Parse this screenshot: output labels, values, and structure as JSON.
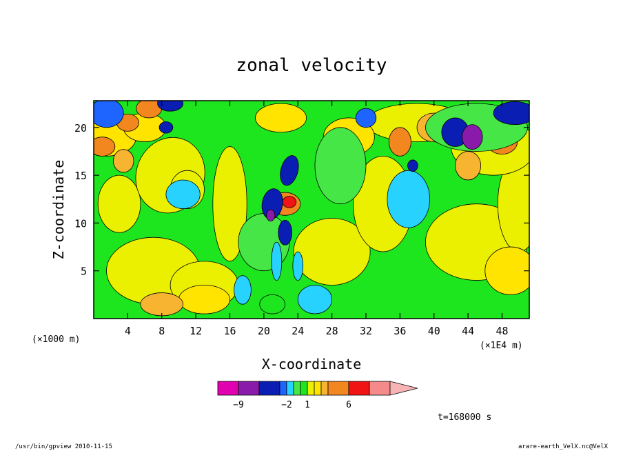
{
  "chart_data": {
    "type": "heatmap",
    "title": "zonal velocity",
    "xlabel": "X-coordinate",
    "ylabel": "Z-coordinate",
    "x_unit": "(×1E4 m)",
    "y_unit": "(×1000 m)",
    "xlim": [
      0,
      51.2
    ],
    "ylim": [
      0,
      22.8
    ],
    "x_ticks": [
      4,
      8,
      12,
      16,
      20,
      24,
      28,
      32,
      36,
      40,
      44,
      48
    ],
    "y_ticks": [
      5,
      10,
      15,
      20
    ],
    "time_label": "t=168000 s",
    "colorbar": {
      "labels": [
        {
          "value": -9,
          "text": "−9"
        },
        {
          "value": -2,
          "text": "−2"
        },
        {
          "value": 1,
          "text": "1"
        },
        {
          "value": 6,
          "text": "6"
        }
      ],
      "bins": [
        {
          "from": -12,
          "to": -9,
          "color": "#e000b0"
        },
        {
          "from": -9,
          "to": -6,
          "color": "#8a1aaa"
        },
        {
          "from": -6,
          "to": -3,
          "color": "#0a1eb4"
        },
        {
          "from": -3,
          "to": -2,
          "color": "#1e64ff"
        },
        {
          "from": -2,
          "to": -1,
          "color": "#28d2ff"
        },
        {
          "from": -1,
          "to": 0,
          "color": "#46e646"
        },
        {
          "from": 0,
          "to": 1,
          "color": "#1ee61e"
        },
        {
          "from": 1,
          "to": 2,
          "color": "#eaf000"
        },
        {
          "from": 2,
          "to": 3,
          "color": "#ffe400"
        },
        {
          "from": 3,
          "to": 4,
          "color": "#f7b431"
        },
        {
          "from": 4,
          "to": 6,
          "color": "#f2861f"
        },
        {
          "from": 6,
          "to": 9,
          "color": "#f01414"
        },
        {
          "from": 9,
          "to": 12,
          "color": "#f58a8a"
        },
        {
          "from": 12,
          "to": 15,
          "color": "#f8b4b4"
        }
      ]
    }
  },
  "footer": {
    "left": "/usr/bin/gpview   2010-11-15",
    "right": "arare-earth_VelX.nc@VelX"
  }
}
